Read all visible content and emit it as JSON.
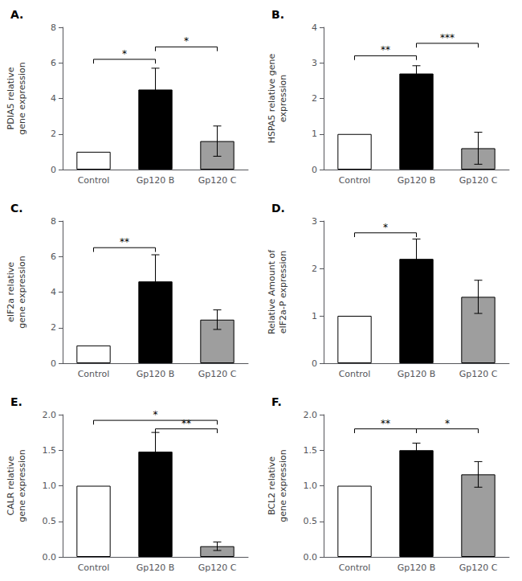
{
  "chart_data": [
    {
      "type": "bar",
      "title": "A.",
      "ylabel": "PDIA5 relative\ngene expression",
      "categories": [
        "Control",
        "Gp120 B",
        "Gp120 C"
      ],
      "values": [
        1.0,
        4.5,
        1.6
      ],
      "errors": [
        0.0,
        1.2,
        0.85
      ],
      "colors": [
        "#ffffff",
        "#000000",
        "#9e9e9e"
      ],
      "ylim": [
        0,
        8
      ],
      "yticks": [
        0,
        2,
        4,
        6,
        8
      ],
      "grid": false,
      "annotations": [
        {
          "from": "Control",
          "to": "Gp120 B",
          "y": 6.2,
          "text": "*"
        },
        {
          "from": "Gp120 B",
          "to": "Gp120 C",
          "y": 6.9,
          "text": "*"
        }
      ]
    },
    {
      "type": "bar",
      "title": "B.",
      "ylabel": "HSPA5 relative gene\nexpression",
      "categories": [
        "Control",
        "Gp120 B",
        "Gp120 C"
      ],
      "values": [
        1.0,
        2.7,
        0.6
      ],
      "errors": [
        0.0,
        0.22,
        0.45
      ],
      "colors": [
        "#ffffff",
        "#000000",
        "#9e9e9e"
      ],
      "ylim": [
        0,
        4
      ],
      "yticks": [
        0,
        1,
        2,
        3,
        4
      ],
      "grid": false,
      "annotations": [
        {
          "from": "Control",
          "to": "Gp120 B",
          "y": 3.2,
          "text": "**"
        },
        {
          "from": "Gp120 B",
          "to": "Gp120 C",
          "y": 3.55,
          "text": "***"
        }
      ]
    },
    {
      "type": "bar",
      "title": "C.",
      "ylabel": "eIF2a relative\ngene expression",
      "categories": [
        "Control",
        "Gp120 B",
        "Gp120 C"
      ],
      "values": [
        1.0,
        4.6,
        2.45
      ],
      "errors": [
        0.0,
        1.5,
        0.55
      ],
      "colors": [
        "#ffffff",
        "#000000",
        "#9e9e9e"
      ],
      "ylim": [
        0,
        8
      ],
      "yticks": [
        0,
        2,
        4,
        6,
        8
      ],
      "grid": false,
      "annotations": [
        {
          "from": "Control",
          "to": "Gp120 B",
          "y": 6.5,
          "text": "**"
        }
      ]
    },
    {
      "type": "bar",
      "title": "D.",
      "ylabel": "Relative Amount of\neIF2a-P expression",
      "categories": [
        "Control",
        "Gp120 B",
        "Gp120 C"
      ],
      "values": [
        1.0,
        2.2,
        1.4
      ],
      "errors": [
        0.0,
        0.42,
        0.35
      ],
      "colors": [
        "#ffffff",
        "#000000",
        "#9e9e9e"
      ],
      "ylim": [
        0,
        3
      ],
      "yticks": [
        0,
        1,
        2,
        3
      ],
      "grid": false,
      "annotations": [
        {
          "from": "Control",
          "to": "Gp120 B",
          "y": 2.75,
          "text": "*"
        }
      ]
    },
    {
      "type": "bar",
      "title": "E.",
      "ylabel": "CALR relative\ngene expression",
      "categories": [
        "Control",
        "Gp120 B",
        "Gp120 C"
      ],
      "values": [
        1.0,
        1.48,
        0.15
      ],
      "errors": [
        0.0,
        0.27,
        0.06
      ],
      "colors": [
        "#ffffff",
        "#000000",
        "#9e9e9e"
      ],
      "ylim": [
        0,
        2
      ],
      "yticks": [
        {
          "value": 0,
          "label": "0.0"
        },
        0.5,
        {
          "value": 1,
          "label": "1.0"
        },
        1.5,
        {
          "value": 2,
          "label": "2.0"
        }
      ],
      "grid": false,
      "annotations": [
        {
          "from": "Control",
          "to": "Gp120 C",
          "y": 1.92,
          "text": "*"
        },
        {
          "from": "Gp120 B",
          "to": "Gp120 C",
          "y": 1.8,
          "text": "**"
        }
      ]
    },
    {
      "type": "bar",
      "title": "F.",
      "ylabel": "BCL2 relative\ngene expression",
      "categories": [
        "Control",
        "Gp120 B",
        "Gp120 C"
      ],
      "values": [
        1.0,
        1.5,
        1.16
      ],
      "errors": [
        0.0,
        0.1,
        0.18
      ],
      "colors": [
        "#ffffff",
        "#000000",
        "#9e9e9e"
      ],
      "ylim": [
        0,
        2
      ],
      "yticks": [
        {
          "value": 0,
          "label": "0.0"
        },
        0.5,
        {
          "value": 1,
          "label": "1.0"
        },
        1.5,
        {
          "value": 2,
          "label": "2.0"
        }
      ],
      "grid": false,
      "annotations": [
        {
          "from": "Control",
          "to": "Gp120 B",
          "y": 1.8,
          "text": "**"
        },
        {
          "from": "Gp120 B",
          "to": "Gp120 C",
          "y": 1.8,
          "text": "*"
        }
      ]
    }
  ]
}
